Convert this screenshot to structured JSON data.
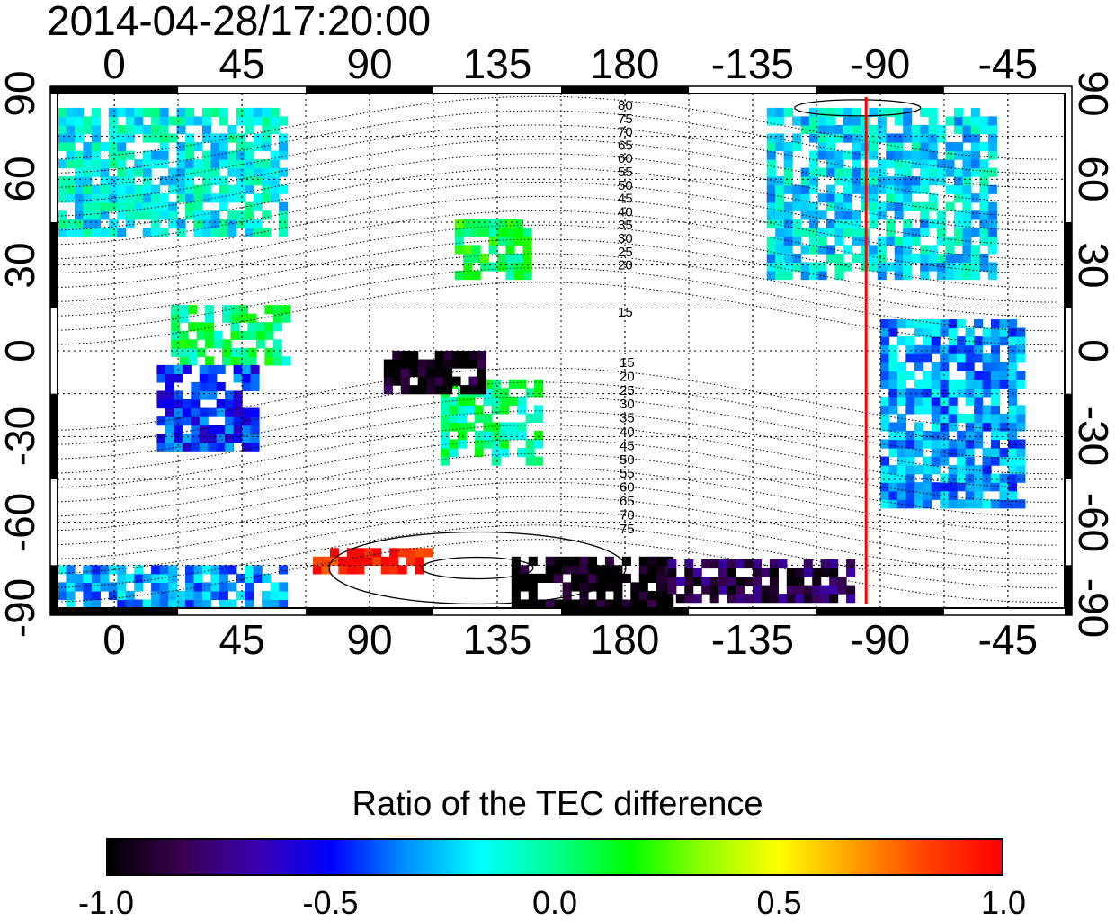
{
  "title": "2014-04-28/17:20:00",
  "axes": {
    "x_ticks": [
      "0",
      "45",
      "90",
      "135",
      "180",
      "-135",
      "-90",
      "-45"
    ],
    "y_ticks": [
      "90",
      "60",
      "30",
      "0",
      "-30",
      "-60",
      "-90"
    ],
    "x_tick_lon": [
      0,
      45,
      90,
      135,
      180,
      225,
      270,
      315
    ],
    "x_range": [
      -20,
      335
    ],
    "y_range": [
      -90,
      90
    ],
    "grid": true
  },
  "mag_lat_labels_north": [
    "80",
    "75",
    "70",
    "65",
    "60",
    "55",
    "50",
    "45",
    "40",
    "35",
    "30",
    "25",
    "20",
    "15"
  ],
  "mag_lat_labels_south": [
    "15",
    "20",
    "25",
    "30",
    "35",
    "40",
    "45",
    "50",
    "55",
    "60",
    "65",
    "70",
    "75"
  ],
  "terminator_longitude": 265,
  "colorbar": {
    "title": "Ratio of the TEC difference",
    "min": -1.0,
    "max": 1.0,
    "tick_labels": [
      "-1.0",
      "-0.5",
      "0.0",
      "0.5",
      "1.0"
    ],
    "tick_values": [
      -1.0,
      -0.5,
      0.0,
      0.5,
      1.0
    ],
    "colors": [
      "#000000",
      "#3a0050",
      "#3a00b0",
      "#0000ff",
      "#0090ff",
      "#00ffff",
      "#00ff90",
      "#00ff00",
      "#90ff00",
      "#ffff00",
      "#ffa000",
      "#ff4000",
      "#ff0000"
    ]
  },
  "colors": {
    "terminator": "#ff0000",
    "frame": "#000000"
  },
  "chart_data": {
    "type": "heatmap",
    "title": "2014-04-28/17:20:00",
    "xlabel": "",
    "ylabel": "",
    "xlim": [
      -20,
      335
    ],
    "ylim": [
      -90,
      90
    ],
    "value_range": [
      -1.0,
      1.0
    ],
    "regions": [
      {
        "lon": [
          -20,
          60
        ],
        "lat": [
          40,
          85
        ],
        "value": -0.15
      },
      {
        "lon": [
          20,
          60
        ],
        "lat": [
          -5,
          15
        ],
        "value": 0.05
      },
      {
        "lon": [
          15,
          50
        ],
        "lat": [
          -35,
          -5
        ],
        "value": -0.45
      },
      {
        "lon": [
          115,
          150
        ],
        "lat": [
          -40,
          -10
        ],
        "value": 0.0
      },
      {
        "lon": [
          120,
          145
        ],
        "lat": [
          25,
          45
        ],
        "value": 0.1
      },
      {
        "lon": [
          230,
          310
        ],
        "lat": [
          25,
          85
        ],
        "value": -0.2
      },
      {
        "lon": [
          270,
          320
        ],
        "lat": [
          -55,
          10
        ],
        "value": -0.3
      },
      {
        "lon": [
          140,
          195
        ],
        "lat": [
          -90,
          -73
        ],
        "value": -1.0
      },
      {
        "lon": [
          195,
          260
        ],
        "lat": [
          -88,
          -75
        ],
        "value": -0.85
      },
      {
        "lon": [
          70,
          110
        ],
        "lat": [
          -78,
          -70
        ],
        "value": 0.95
      },
      {
        "lon": [
          -20,
          60
        ],
        "lat": [
          -90,
          -75
        ],
        "value": -0.3
      },
      {
        "lon": [
          95,
          130
        ],
        "lat": [
          -15,
          0
        ],
        "value": -0.95
      }
    ]
  }
}
